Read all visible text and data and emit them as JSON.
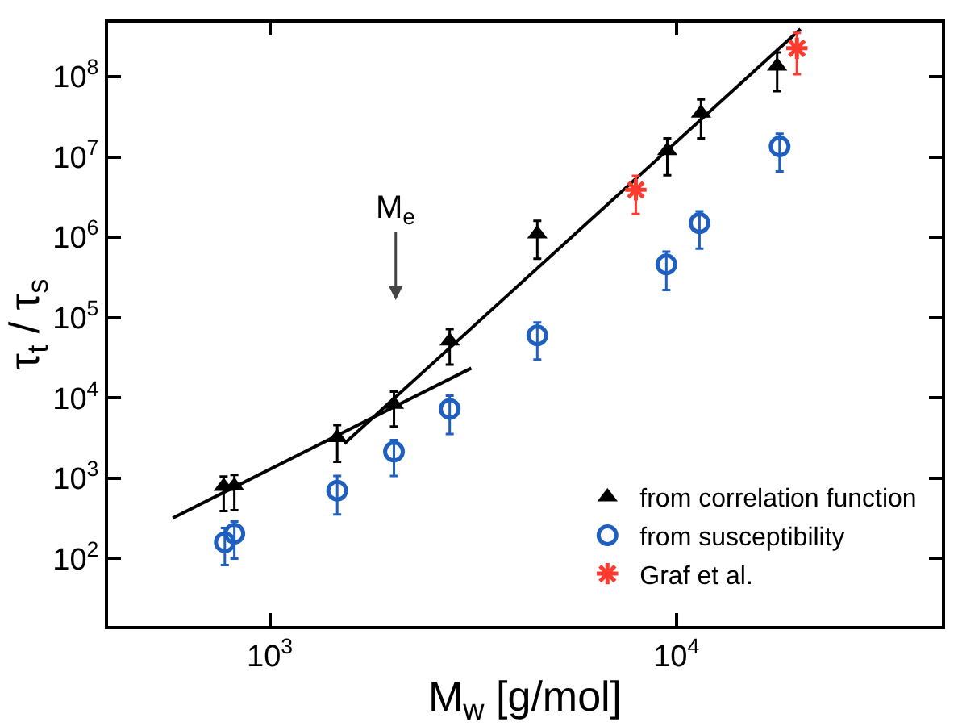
{
  "chart_data": {
    "type": "scatter",
    "xlabel": "M$_{w}$ [g/mol]",
    "ylabel": "τ$_{t}$ / τ$_{s}$",
    "log": "xy",
    "grid": false,
    "legend": "bottom right",
    "xlim": [
      400,
      45000
    ],
    "xticks": [
      {
        "value": 1000,
        "label": "10$^{3}$"
      },
      {
        "value": 10000,
        "label": "10$^{4}$"
      }
    ],
    "ylim": [
      14.5,
      470000000
    ],
    "yticks": [
      {
        "value": 100,
        "label": "10$^{2}$"
      },
      {
        "value": 1000,
        "label": "10$^{3}$"
      },
      {
        "value": 10000,
        "label": "10$^{4}$"
      },
      {
        "value": 100000,
        "label": "10$^{5}$"
      },
      {
        "value": 1000000,
        "label": "10$^{6}$"
      },
      {
        "value": 10000000,
        "label": "10$^{7}$"
      },
      {
        "value": 100000000,
        "label": "10$^{8}$"
      }
    ],
    "annotations": [
      "M$_{e}$"
    ],
    "series": [
      {
        "name": "from correlation function",
        "color": "#000000",
        "marker": "triangle",
        "x": [
          770,
          818,
          1465,
          2020,
          2770,
          4550,
          9500,
          11500,
          17700
        ],
        "values": [
          790,
          800,
          3200,
          8300,
          51000,
          1100000,
          12000000,
          35000000,
          135000000
        ],
        "errors": [
          [
            390,
            1050
          ],
          [
            400,
            1100
          ],
          [
            1600,
            4600
          ],
          [
            4400,
            12000
          ],
          [
            26000,
            72000
          ],
          [
            540000,
            1600000
          ],
          [
            5900000,
            17000000
          ],
          [
            17000000,
            52000000
          ],
          [
            66000000,
            200000000
          ]
        ]
      },
      {
        "name": "from susceptibility",
        "color": "#1f5fbf",
        "marker": "circle",
        "x": [
          775,
          818,
          1465,
          2020,
          2770,
          4550,
          9450,
          11400,
          17950
        ],
        "values": [
          160,
          205,
          700,
          2150,
          7300,
          60000,
          460000,
          1500000,
          13500000
        ],
        "errors": [
          [
            83,
            240
          ],
          [
            100,
            290
          ],
          [
            355,
            1070
          ],
          [
            1070,
            3000
          ],
          [
            3550,
            10700
          ],
          [
            30000,
            87000
          ],
          [
            220000,
            660000
          ],
          [
            720000,
            2100000
          ],
          [
            6600000,
            19500000
          ]
        ]
      },
      {
        "name": "Graf et al.",
        "color": "#ff3b30",
        "marker": "cross",
        "x": [
          7950,
          19800
        ],
        "values": [
          3900000,
          225000000
        ],
        "errors": [
          [
            1950000,
            5800000
          ],
          [
            107000000,
            350000000
          ]
        ]
      },
      {
        "type": "line",
        "color": "#000000",
        "marker": "none",
        "line_style": "solid",
        "x": [
          577,
          3130
        ],
        "values": [
          320,
          23500
        ]
      },
      {
        "type": "line",
        "color": "#000000",
        "marker": "none",
        "line_style": "solid",
        "x": [
          1525,
          20200
        ],
        "values": [
          2700,
          390000000
        ]
      }
    ]
  }
}
